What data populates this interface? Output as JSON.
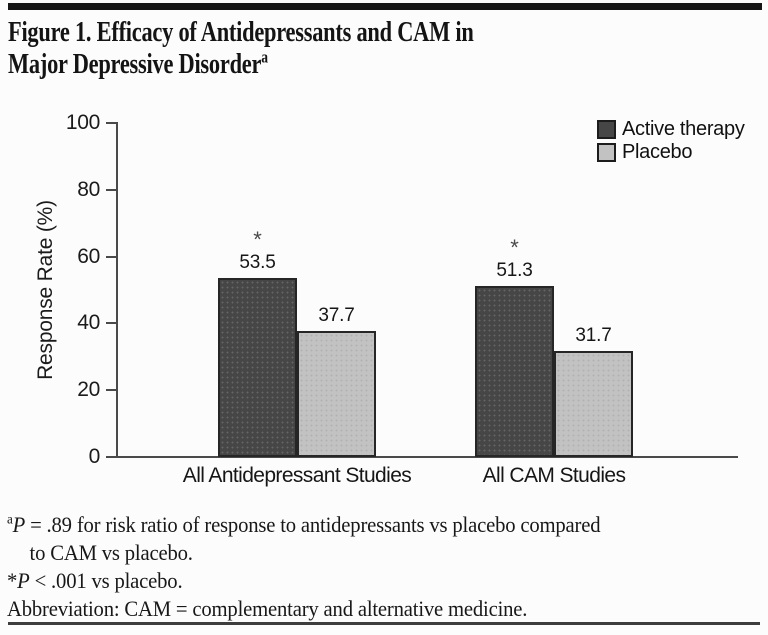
{
  "figure": {
    "title_lines": [
      "Figure 1. Efficacy of Antidepressants and CAM in",
      "Major Depressive Disorder"
    ],
    "title_superscript": "a"
  },
  "chart_data": {
    "type": "bar",
    "title": "Figure 1. Efficacy of Antidepressants and CAM in Major Depressive Disorder",
    "categories": [
      "All Antidepressant Studies",
      "All CAM Studies"
    ],
    "series": [
      {
        "name": "Active therapy",
        "values": [
          53.5,
          51.3
        ],
        "color": "#464646",
        "annotations": [
          "*",
          "*"
        ]
      },
      {
        "name": "Placebo",
        "values": [
          37.7,
          31.7
        ],
        "color": "#c2c2c2",
        "annotations": [
          "",
          ""
        ]
      }
    ],
    "ylabel": "Response Rate (%)",
    "ylim": [
      0,
      100
    ],
    "yticks": [
      0,
      20,
      40,
      60,
      80,
      100
    ],
    "legend_position": "top-right",
    "grid": false,
    "colors": {
      "active_therapy": "#464646",
      "placebo": "#c2c2c2",
      "bar_border": "#262626",
      "axis": "#4a4a4a"
    }
  },
  "footnotes": {
    "sup_a": "a",
    "p1_italic": "P",
    "p1_rest": " = .89 for risk ratio of response to antidepressants vs placebo compared",
    "p1_line2": "to CAM vs placebo.",
    "star": "*",
    "p2_italic": "P",
    "p2_rest": " < .001 vs placebo.",
    "abbreviation": "Abbreviation: CAM = complementary and alternative medicine."
  }
}
